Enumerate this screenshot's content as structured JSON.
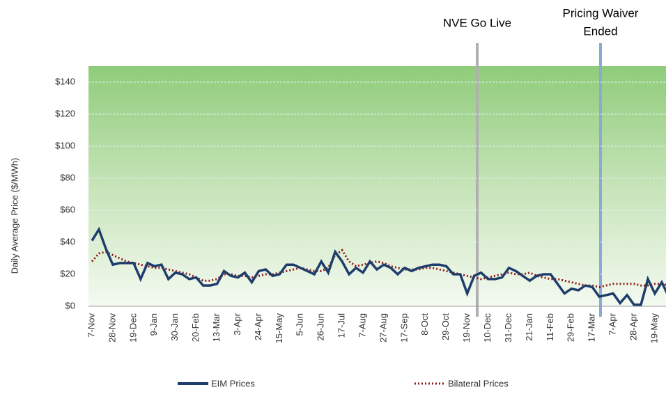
{
  "chart_data": {
    "type": "line",
    "y_label": "Daily Average Price ($/MWh)",
    "annotations": [
      "NVE Go Live",
      "Pricing Waiver",
      "Ended"
    ],
    "categories": [
      "7-Nov",
      null,
      null,
      "28-Nov",
      null,
      null,
      "19-Dec",
      null,
      null,
      "9-Jan",
      null,
      null,
      "30-Jan",
      null,
      null,
      "20-Feb",
      null,
      null,
      "13-Mar",
      null,
      null,
      "3-Apr",
      null,
      null,
      "24-Apr",
      null,
      null,
      "15-May",
      null,
      null,
      "5-Jun",
      null,
      null,
      "26-Jun",
      null,
      null,
      "17-Jul",
      null,
      null,
      "7-Aug",
      null,
      null,
      "27-Aug",
      null,
      null,
      "17-Sep",
      null,
      null,
      "8-Oct",
      null,
      null,
      "29-Oct",
      null,
      null,
      "19-Nov",
      null,
      null,
      "10-Dec",
      null,
      null,
      "31-Dec",
      null,
      null,
      "21-Jan",
      null,
      null,
      "11-Feb",
      null,
      null,
      "29-Feb",
      null,
      null,
      "17-Mar",
      null,
      null,
      "7-Apr",
      null,
      null,
      "28-Apr",
      null,
      null,
      "19-May",
      null,
      null,
      null,
      null
    ],
    "series": [
      {
        "name": "EIM Prices",
        "color": "#1f3d6b",
        "values": [
          41,
          48,
          36,
          26,
          27,
          27,
          27,
          17,
          27,
          25,
          26,
          17,
          21,
          20,
          17,
          18,
          13,
          13,
          14,
          22,
          19,
          18,
          21,
          15,
          22,
          23,
          19,
          20,
          26,
          26,
          24,
          22,
          20,
          28,
          21,
          34,
          28,
          20,
          24,
          21,
          28,
          23,
          26,
          24,
          20,
          24,
          22,
          24,
          25,
          26,
          26,
          25,
          20,
          20,
          8,
          19,
          21,
          17,
          17,
          18,
          24,
          22,
          19,
          16,
          19,
          20,
          20,
          14,
          8,
          11,
          10,
          13,
          12,
          6,
          7,
          8,
          2,
          7,
          1,
          1,
          17,
          8,
          15,
          6,
          11,
          12
        ]
      },
      {
        "name": "Bilateral Prices",
        "color": "#8b1a1a",
        "dash": true,
        "values": [
          28,
          33,
          34,
          32,
          30,
          28,
          27,
          26,
          25,
          24,
          24,
          23,
          22,
          21,
          20,
          18,
          16,
          16,
          17,
          20,
          20,
          19,
          19,
          18,
          19,
          20,
          20,
          21,
          22,
          23,
          24,
          23,
          22,
          22,
          24,
          32,
          35,
          28,
          25,
          26,
          27,
          28,
          27,
          25,
          24,
          23,
          23,
          23,
          24,
          24,
          23,
          22,
          21,
          20,
          19,
          18,
          17,
          18,
          19,
          20,
          21,
          20,
          20,
          21,
          19,
          18,
          17,
          17,
          16,
          15,
          14,
          13,
          13,
          12,
          13,
          14,
          14,
          14,
          14,
          13,
          13,
          14,
          14,
          13,
          13,
          12
        ]
      }
    ],
    "ylim": [
      0,
      150
    ],
    "yticks": [
      {
        "value": 0,
        "label": "$0"
      },
      {
        "value": 20,
        "label": "$20"
      },
      {
        "value": 40,
        "label": "$40"
      },
      {
        "value": 60,
        "label": "$60"
      },
      {
        "value": 80,
        "label": "$80"
      },
      {
        "value": 100,
        "label": "$100"
      },
      {
        "value": 120,
        "label": "$120"
      },
      {
        "value": 140,
        "label": "$140"
      }
    ],
    "grid": true
  }
}
